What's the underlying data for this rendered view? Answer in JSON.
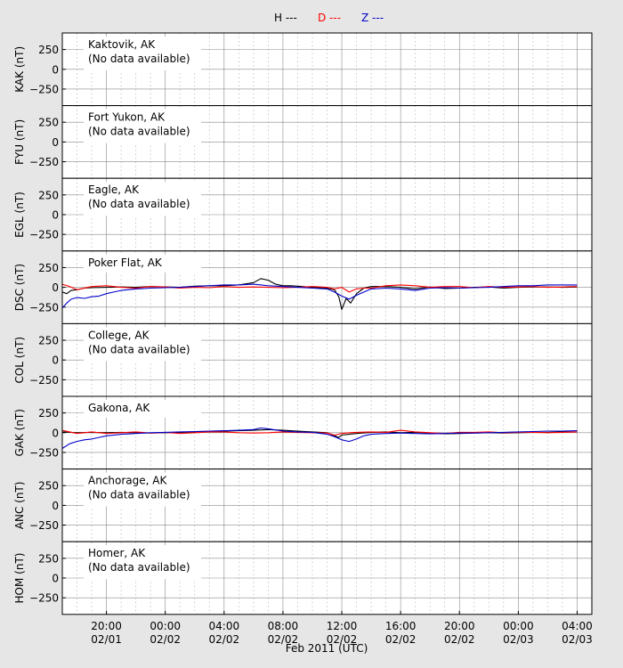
{
  "legend": {
    "h_label": "H ---",
    "d_label": "D ---",
    "z_label": "Z ---",
    "h_color": "#000000",
    "d_color": "#ff0000",
    "z_color": "#0000cc"
  },
  "x_axis": {
    "title": "Feb 2011 (UTC)",
    "ticks": [
      {
        "time": "20:00",
        "date": "02/01"
      },
      {
        "time": "00:00",
        "date": "02/02"
      },
      {
        "time": "04:00",
        "date": "02/02"
      },
      {
        "time": "08:00",
        "date": "02/02"
      },
      {
        "time": "12:00",
        "date": "02/02"
      },
      {
        "time": "16:00",
        "date": "02/02"
      },
      {
        "time": "20:00",
        "date": "02/02"
      },
      {
        "time": "00:00",
        "date": "02/03"
      },
      {
        "time": "04:00",
        "date": "02/03"
      }
    ]
  },
  "chart_data": {
    "type": "line",
    "x_unit": "hours since 2011-02-01 00:00 UTC",
    "xlim": [
      17.0,
      53.0
    ],
    "ylim": [
      -460,
      460
    ],
    "yticks": [
      250,
      0,
      -250
    ],
    "grid": true,
    "legend_position": "top-center",
    "panels": [
      {
        "station": "Kaktovik, AK",
        "ylabel": "KAK (nT)",
        "note": "(No data available)",
        "series": []
      },
      {
        "station": "Fort Yukon, AK",
        "ylabel": "FYU (nT)",
        "note": "(No data available)",
        "series": []
      },
      {
        "station": "Eagle, AK",
        "ylabel": "EGL (nT)",
        "note": "(No data available)",
        "series": []
      },
      {
        "station": "Poker Flat, AK",
        "ylabel": "DSC (nT)",
        "note": "",
        "series": [
          {
            "name": "H",
            "x": [
              17.0,
              17.3,
              17.6,
              18.0,
              18.5,
              19.0,
              20.0,
              21.0,
              22.0,
              23.0,
              24.0,
              25.0,
              26.0,
              27.0,
              28.0,
              29.0,
              30.0,
              30.5,
              31.0,
              31.5,
              32.0,
              32.5,
              33.0,
              34.0,
              35.0,
              35.5,
              35.8,
              36.0,
              36.3,
              36.6,
              37.0,
              37.5,
              38.0,
              39.0,
              40.0,
              41.0,
              42.0,
              43.0,
              44.0,
              45.0,
              46.0,
              47.0,
              48.0,
              49.0,
              50.0,
              51.0,
              52.0
            ],
            "y": [
              -60,
              -80,
              -40,
              -30,
              -10,
              -5,
              0,
              5,
              0,
              10,
              5,
              0,
              15,
              20,
              20,
              30,
              60,
              110,
              90,
              40,
              20,
              20,
              15,
              0,
              -10,
              -30,
              -120,
              -280,
              -140,
              -200,
              -80,
              -10,
              10,
              10,
              0,
              -20,
              5,
              -15,
              -10,
              0,
              5,
              -10,
              0,
              5,
              5,
              0,
              5
            ]
          },
          {
            "name": "D",
            "x": [
              17.0,
              17.5,
              18.0,
              19.0,
              20.0,
              21.0,
              22.0,
              23.0,
              24.0,
              25.0,
              26.0,
              27.0,
              28.0,
              29.0,
              30.0,
              31.0,
              32.0,
              33.0,
              34.0,
              35.0,
              35.5,
              36.0,
              36.5,
              37.0,
              37.5,
              38.0,
              39.0,
              40.0,
              41.0,
              42.0,
              43.0,
              44.0,
              45.0,
              46.0,
              47.0,
              48.0,
              49.0,
              50.0,
              51.0,
              52.0
            ],
            "y": [
              40,
              10,
              -30,
              10,
              20,
              0,
              -10,
              10,
              5,
              -10,
              0,
              -5,
              10,
              0,
              5,
              0,
              -5,
              0,
              10,
              0,
              -20,
              0,
              -60,
              -20,
              -10,
              -10,
              20,
              30,
              20,
              0,
              10,
              10,
              -5,
              10,
              0,
              5,
              10,
              0,
              5,
              10
            ]
          },
          {
            "name": "Z",
            "x": [
              17.0,
              17.3,
              17.6,
              18.0,
              18.5,
              19.0,
              19.5,
              20.0,
              20.5,
              21.0,
              22.0,
              23.0,
              24.0,
              25.0,
              26.0,
              27.0,
              28.0,
              29.0,
              30.0,
              31.0,
              32.0,
              33.0,
              34.0,
              35.0,
              35.5,
              36.0,
              36.5,
              37.0,
              37.5,
              38.0,
              39.0,
              40.0,
              41.0,
              42.0,
              43.0,
              44.0,
              45.0,
              46.0,
              47.0,
              48.0,
              49.0,
              50.0,
              51.0,
              52.0
            ],
            "y": [
              -260,
              -200,
              -150,
              -130,
              -140,
              -120,
              -110,
              -80,
              -60,
              -40,
              -20,
              -10,
              -5,
              0,
              10,
              20,
              30,
              30,
              40,
              20,
              10,
              0,
              -10,
              -20,
              -60,
              -110,
              -150,
              -100,
              -60,
              -20,
              -10,
              -20,
              -40,
              -10,
              -5,
              -10,
              -5,
              0,
              10,
              20,
              20,
              30,
              30,
              30
            ]
          }
        ]
      },
      {
        "station": "College, AK",
        "ylabel": "COL (nT)",
        "note": "(No data available)",
        "series": []
      },
      {
        "station": "Gakona, AK",
        "ylabel": "GAK (nT)",
        "note": "",
        "series": [
          {
            "name": "H",
            "x": [
              17.0,
              18.0,
              19.0,
              20.0,
              21.0,
              22.0,
              23.0,
              24.0,
              25.0,
              26.0,
              27.0,
              28.0,
              29.0,
              30.0,
              31.0,
              32.0,
              33.0,
              34.0,
              35.0,
              35.5,
              35.8,
              36.0,
              36.5,
              37.0,
              38.0,
              39.0,
              40.0,
              41.0,
              42.0,
              43.0,
              44.0,
              45.0,
              46.0,
              47.0,
              48.0,
              49.0,
              50.0,
              51.0,
              52.0
            ],
            "y": [
              10,
              0,
              5,
              0,
              5,
              0,
              -5,
              0,
              5,
              10,
              15,
              20,
              25,
              30,
              40,
              30,
              20,
              10,
              0,
              -40,
              -60,
              -30,
              -20,
              -10,
              5,
              10,
              0,
              5,
              -5,
              -15,
              -10,
              -5,
              0,
              -5,
              0,
              5,
              5,
              10,
              10
            ]
          },
          {
            "name": "D",
            "x": [
              17.0,
              17.5,
              18.0,
              19.0,
              20.0,
              21.0,
              22.0,
              23.0,
              24.0,
              25.0,
              26.0,
              27.0,
              28.0,
              29.0,
              30.0,
              31.0,
              32.0,
              33.0,
              34.0,
              35.0,
              35.5,
              36.0,
              36.5,
              37.0,
              38.0,
              39.0,
              40.0,
              41.0,
              42.0,
              43.0,
              44.0,
              45.0,
              46.0,
              47.0,
              48.0,
              49.0,
              50.0,
              51.0,
              52.0
            ],
            "y": [
              30,
              10,
              -10,
              10,
              -10,
              0,
              10,
              -5,
              5,
              -10,
              0,
              10,
              10,
              0,
              -5,
              0,
              10,
              5,
              0,
              -5,
              -30,
              -10,
              0,
              5,
              10,
              5,
              30,
              10,
              0,
              -10,
              5,
              5,
              10,
              0,
              5,
              5,
              0,
              5,
              10
            ]
          },
          {
            "name": "Z",
            "x": [
              17.0,
              17.5,
              18.0,
              18.5,
              19.0,
              19.5,
              20.0,
              21.0,
              22.0,
              23.0,
              24.0,
              25.0,
              26.0,
              27.0,
              28.0,
              29.0,
              30.0,
              30.5,
              31.0,
              32.0,
              33.0,
              34.0,
              35.0,
              35.5,
              36.0,
              36.5,
              37.0,
              37.5,
              38.0,
              39.0,
              40.0,
              41.0,
              42.0,
              43.0,
              44.0,
              45.0,
              46.0,
              47.0,
              48.0,
              49.0,
              50.0,
              51.0,
              52.0
            ],
            "y": [
              -200,
              -140,
              -110,
              -90,
              -80,
              -60,
              -40,
              -20,
              -10,
              0,
              5,
              10,
              15,
              20,
              25,
              30,
              40,
              60,
              50,
              20,
              10,
              5,
              -20,
              -50,
              -90,
              -110,
              -80,
              -40,
              -20,
              -10,
              -5,
              -10,
              -15,
              -10,
              -5,
              -5,
              0,
              5,
              10,
              15,
              20,
              20,
              25
            ]
          }
        ]
      },
      {
        "station": "Anchorage, AK",
        "ylabel": "ANC (nT)",
        "note": "(No data available)",
        "series": []
      },
      {
        "station": "Homer, AK",
        "ylabel": "HOM (nT)",
        "note": "(No data available)",
        "series": []
      }
    ]
  }
}
